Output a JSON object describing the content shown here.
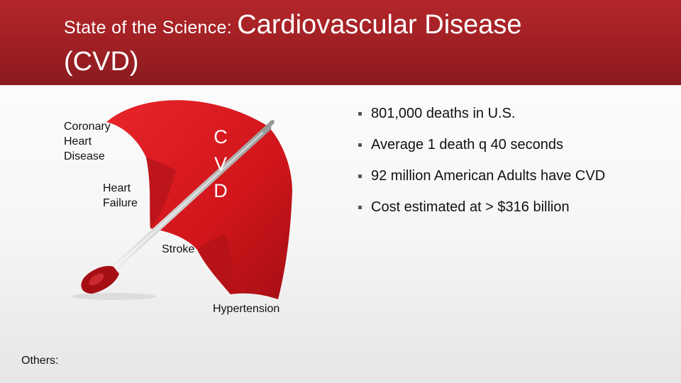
{
  "title": {
    "prefix": "State of the Science: ",
    "main": "Cardiovascular Disease",
    "line2": "(CVD)"
  },
  "umbrella": {
    "labels": {
      "coronary": "Coronary\nHeart\nDisease",
      "heart_failure": "Heart\nFailure",
      "stroke": "Stroke",
      "hypertension": "Hypertension"
    },
    "cvd_letters": [
      "C",
      "V",
      "D"
    ],
    "color": "#d6161c"
  },
  "others_label": "Others:",
  "bullets": [
    "801,000 deaths in U.S.",
    "Average 1 death q 40 seconds",
    "92 million American Adults have CVD",
    "Cost estimated at > $316 billion"
  ]
}
